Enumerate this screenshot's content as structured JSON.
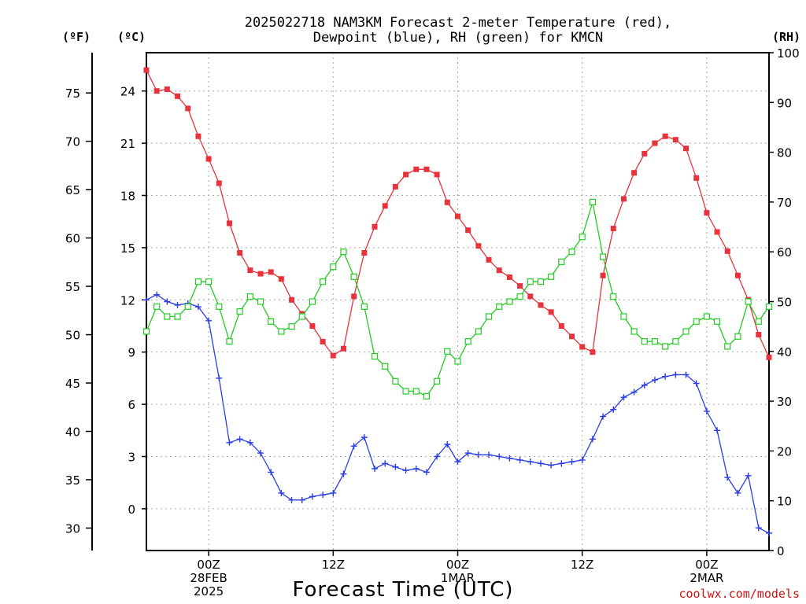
{
  "chart_data": {
    "type": "line",
    "title_line1": "2025022718 NAM3KM Forecast 2-meter Temperature (red),",
    "title_line2": "Dewpoint (blue), RH (green) for KMCN",
    "units": {
      "fahrenheit": "(ºF)",
      "celsius": "(ºC)",
      "rh": "(RH)"
    },
    "xlabel": "Forecast Time (UTC)",
    "credit": "coolwx.com/models",
    "x_tick_labels": [
      {
        "hour": 6,
        "lines": [
          "00Z",
          "28FEB",
          "2025"
        ]
      },
      {
        "hour": 18,
        "lines": [
          "12Z"
        ]
      },
      {
        "hour": 30,
        "lines": [
          "00Z",
          "1MAR"
        ]
      },
      {
        "hour": 42,
        "lines": [
          "12Z"
        ]
      },
      {
        "hour": 54,
        "lines": [
          "00Z",
          "2MAR"
        ]
      }
    ],
    "x_range_hours": [
      0,
      60
    ],
    "celsius_ticks": [
      0,
      3,
      6,
      9,
      12,
      15,
      18,
      21,
      24
    ],
    "celsius_range": [
      -2.4,
      26.2
    ],
    "fahrenheit_ticks": [
      30,
      35,
      40,
      45,
      50,
      55,
      60,
      65,
      70,
      75
    ],
    "rh_ticks": [
      0,
      10,
      20,
      30,
      40,
      50,
      60,
      70,
      80,
      90,
      100
    ],
    "rh_range": [
      0,
      100
    ],
    "grid": true,
    "colors": {
      "temperature": "#e8323c",
      "dewpoint": "#2a3ee8",
      "rh": "#22cc22"
    },
    "series": [
      {
        "name": "Temperature",
        "units": "C",
        "values": [
          25.2,
          24.0,
          24.1,
          23.7,
          23.0,
          21.4,
          20.1,
          18.7,
          16.4,
          14.7,
          13.7,
          13.5,
          13.6,
          13.2,
          12.0,
          11.2,
          10.5,
          9.6,
          8.8,
          9.2,
          12.2,
          14.7,
          16.2,
          17.4,
          18.5,
          19.2,
          19.5,
          19.5,
          19.2,
          17.6,
          16.8,
          16.0,
          15.1,
          14.3,
          13.7,
          13.3,
          12.8,
          12.2,
          11.7,
          11.3,
          10.5,
          9.9,
          9.3,
          9.0,
          13.4,
          16.1,
          17.8,
          19.3,
          20.4,
          21.0,
          21.4,
          21.2,
          20.7,
          19.0,
          17.0,
          15.9,
          14.8,
          13.4,
          12.0,
          10.0,
          8.7
        ]
      },
      {
        "name": "Dewpoint",
        "units": "C",
        "values": [
          12.0,
          12.3,
          11.9,
          11.7,
          11.8,
          11.6,
          10.8,
          7.5,
          3.8,
          4.0,
          3.8,
          3.2,
          2.1,
          0.9,
          0.5,
          0.5,
          0.7,
          0.8,
          0.9,
          2.0,
          3.6,
          4.1,
          2.3,
          2.6,
          2.4,
          2.2,
          2.3,
          2.1,
          3.0,
          3.7,
          2.7,
          3.2,
          3.1,
          3.1,
          3.0,
          2.9,
          2.8,
          2.7,
          2.6,
          2.5,
          2.6,
          2.7,
          2.8,
          4.0,
          5.3,
          5.7,
          6.4,
          6.7,
          7.1,
          7.4,
          7.6,
          7.7,
          7.7,
          7.2,
          5.6,
          4.5,
          1.8,
          0.9,
          1.9,
          -1.1,
          -1.4
        ]
      },
      {
        "name": "RH",
        "units": "%",
        "values": [
          44,
          49,
          47,
          47,
          49,
          54,
          54,
          49,
          42,
          48,
          51,
          50,
          46,
          44,
          45,
          47,
          50,
          54,
          57,
          60,
          55,
          49,
          39,
          37,
          34,
          32,
          32,
          31,
          34,
          40,
          38,
          42,
          44,
          47,
          49,
          50,
          51,
          54,
          54,
          55,
          58,
          60,
          63,
          70,
          59,
          51,
          47,
          44,
          42,
          42,
          41,
          42,
          44,
          46,
          47,
          46,
          41,
          43,
          50,
          46,
          49
        ]
      }
    ]
  }
}
